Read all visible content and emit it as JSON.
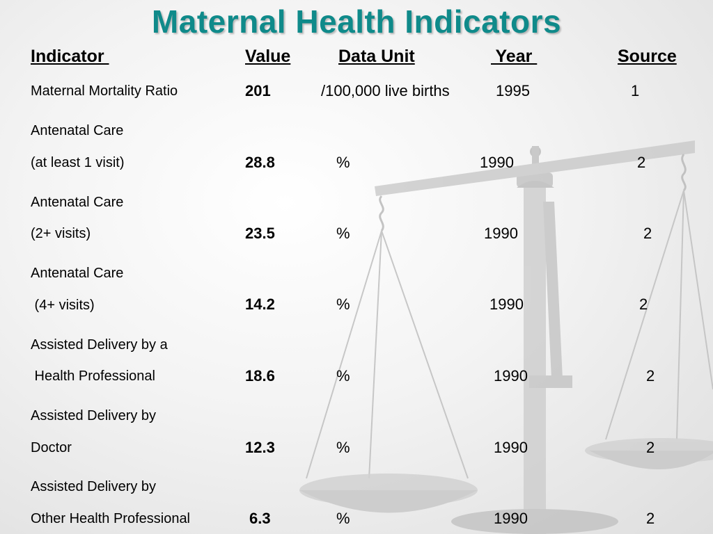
{
  "slide": {
    "title": "Maternal Health Indicators",
    "title_color": "#0f8a8a"
  },
  "headers": {
    "indicator": "Indicator ",
    "value": "Value",
    "unit": "Data Unit",
    "year": " Year ",
    "source": "Source"
  },
  "rows": [
    {
      "label1": "Maternal Mortality Ratio",
      "label2": "",
      "value": "201",
      "unit": "/100,000 live births",
      "year": "1995",
      "source": "1"
    },
    {
      "label1": "Antenatal Care",
      "label2": "(at least 1 visit)",
      "value": "28.8",
      "unit": "%",
      "year": "1990",
      "source": "2"
    },
    {
      "label1": "Antenatal Care",
      "label2": "(2+ visits)",
      "value": "23.5",
      "unit": "%",
      "year": "1990",
      "source": "2"
    },
    {
      "label1": "Antenatal Care",
      "label2": " (4+ visits)",
      "value": "14.2",
      "unit": "%",
      "year": "1990",
      "source": "2"
    },
    {
      "label1": "Assisted Delivery by a",
      "label2": " Health Professional",
      "value": "18.6",
      "unit": "%",
      "year": "1990",
      "source": "2"
    },
    {
      "label1": "Assisted Delivery by",
      "label2": "Doctor",
      "value": "12.3",
      "unit": "%",
      "year": "1990",
      "source": "2"
    },
    {
      "label1": "Assisted Delivery by",
      "label2": "Other Health Professional",
      "value": "6.3",
      "unit": "%",
      "year": "1990",
      "source": "2"
    }
  ],
  "background": {
    "icon": "balance-scale-icon"
  }
}
